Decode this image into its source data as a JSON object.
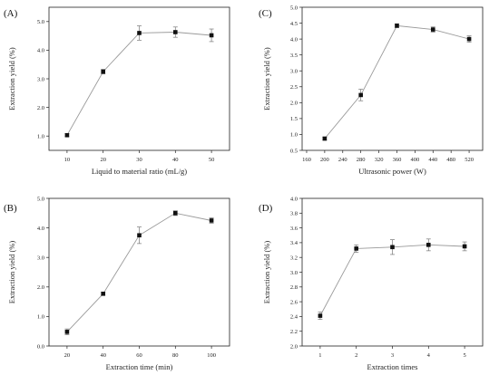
{
  "chart_data": [
    {
      "type": "line",
      "panel_label": "(A)",
      "xlabel": "Liquid to material ratio (mL/g)",
      "ylabel": "Extraction yield (%)",
      "x": [
        10,
        20,
        30,
        40,
        50
      ],
      "y": [
        1.03,
        3.25,
        4.6,
        4.63,
        4.52
      ],
      "yerr": [
        0.05,
        0.08,
        0.25,
        0.18,
        0.22
      ],
      "xlim": [
        5,
        55
      ],
      "ylim": [
        0.5,
        5.5
      ],
      "xticks": [
        10,
        20,
        30,
        40,
        50
      ],
      "yticks": [
        1.0,
        2.0,
        3.0,
        4.0,
        5.0
      ],
      "ytick_labels": [
        "1.0",
        "2.0",
        "3.0",
        "4.0",
        "5.0"
      ],
      "line_color": "#9a9a9a",
      "marker_color": "#111111"
    },
    {
      "type": "line",
      "panel_label": "(C)",
      "xlabel": "Ultrasonic power (W)",
      "ylabel": "Extraction yield (%)",
      "x": [
        200,
        280,
        360,
        440,
        520
      ],
      "y": [
        0.87,
        2.24,
        4.42,
        4.3,
        4.0
      ],
      "yerr": [
        0.05,
        0.18,
        0.06,
        0.08,
        0.1
      ],
      "xlim": [
        150,
        550
      ],
      "ylim": [
        0.5,
        5.0
      ],
      "xticks": [
        160,
        200,
        240,
        280,
        320,
        360,
        400,
        440,
        480,
        520
      ],
      "yticks": [
        0.5,
        1.0,
        1.5,
        2.0,
        2.5,
        3.0,
        3.5,
        4.0,
        4.5,
        5.0
      ],
      "ytick_labels": [
        "0.5",
        "1.0",
        "1.5",
        "2.0",
        "2.5",
        "3.0",
        "3.5",
        "4.0",
        "4.5",
        "5.0"
      ],
      "line_color": "#9a9a9a",
      "marker_color": "#111111"
    },
    {
      "type": "line",
      "panel_label": "(B)",
      "xlabel": "Extraction time (min)",
      "ylabel": "Extraction yield (%)",
      "x": [
        20,
        40,
        60,
        80,
        100
      ],
      "y": [
        0.48,
        1.77,
        3.75,
        4.5,
        4.25
      ],
      "yerr": [
        0.1,
        0.05,
        0.28,
        0.08,
        0.09
      ],
      "xlim": [
        10,
        110
      ],
      "ylim": [
        0.0,
        5.0
      ],
      "xticks": [
        20,
        40,
        60,
        80,
        100
      ],
      "yticks": [
        0.0,
        1.0,
        2.0,
        3.0,
        4.0,
        5.0
      ],
      "ytick_labels": [
        "0.0",
        "1.0",
        "2.0",
        "3.0",
        "4.0",
        "5.0"
      ],
      "line_color": "#9a9a9a",
      "marker_color": "#111111"
    },
    {
      "type": "line",
      "panel_label": "(D)",
      "xlabel": "Extraction times",
      "ylabel": "Extraction yield (%)",
      "x": [
        1,
        2,
        3,
        4,
        5
      ],
      "y": [
        2.41,
        3.32,
        3.34,
        3.37,
        3.35
      ],
      "yerr": [
        0.05,
        0.05,
        0.1,
        0.08,
        0.06
      ],
      "xlim": [
        0.5,
        5.5
      ],
      "ylim": [
        2.0,
        4.0
      ],
      "xticks": [
        1,
        2,
        3,
        4,
        5
      ],
      "yticks": [
        2.0,
        2.2,
        2.4,
        2.6,
        2.8,
        3.0,
        3.2,
        3.4,
        3.6,
        3.8,
        4.0
      ],
      "ytick_labels": [
        "2.0",
        "2.2",
        "2.4",
        "2.6",
        "2.8",
        "3.0",
        "3.2",
        "3.4",
        "3.6",
        "3.8",
        "4.0"
      ],
      "line_color": "#9a9a9a",
      "marker_color": "#111111"
    }
  ]
}
